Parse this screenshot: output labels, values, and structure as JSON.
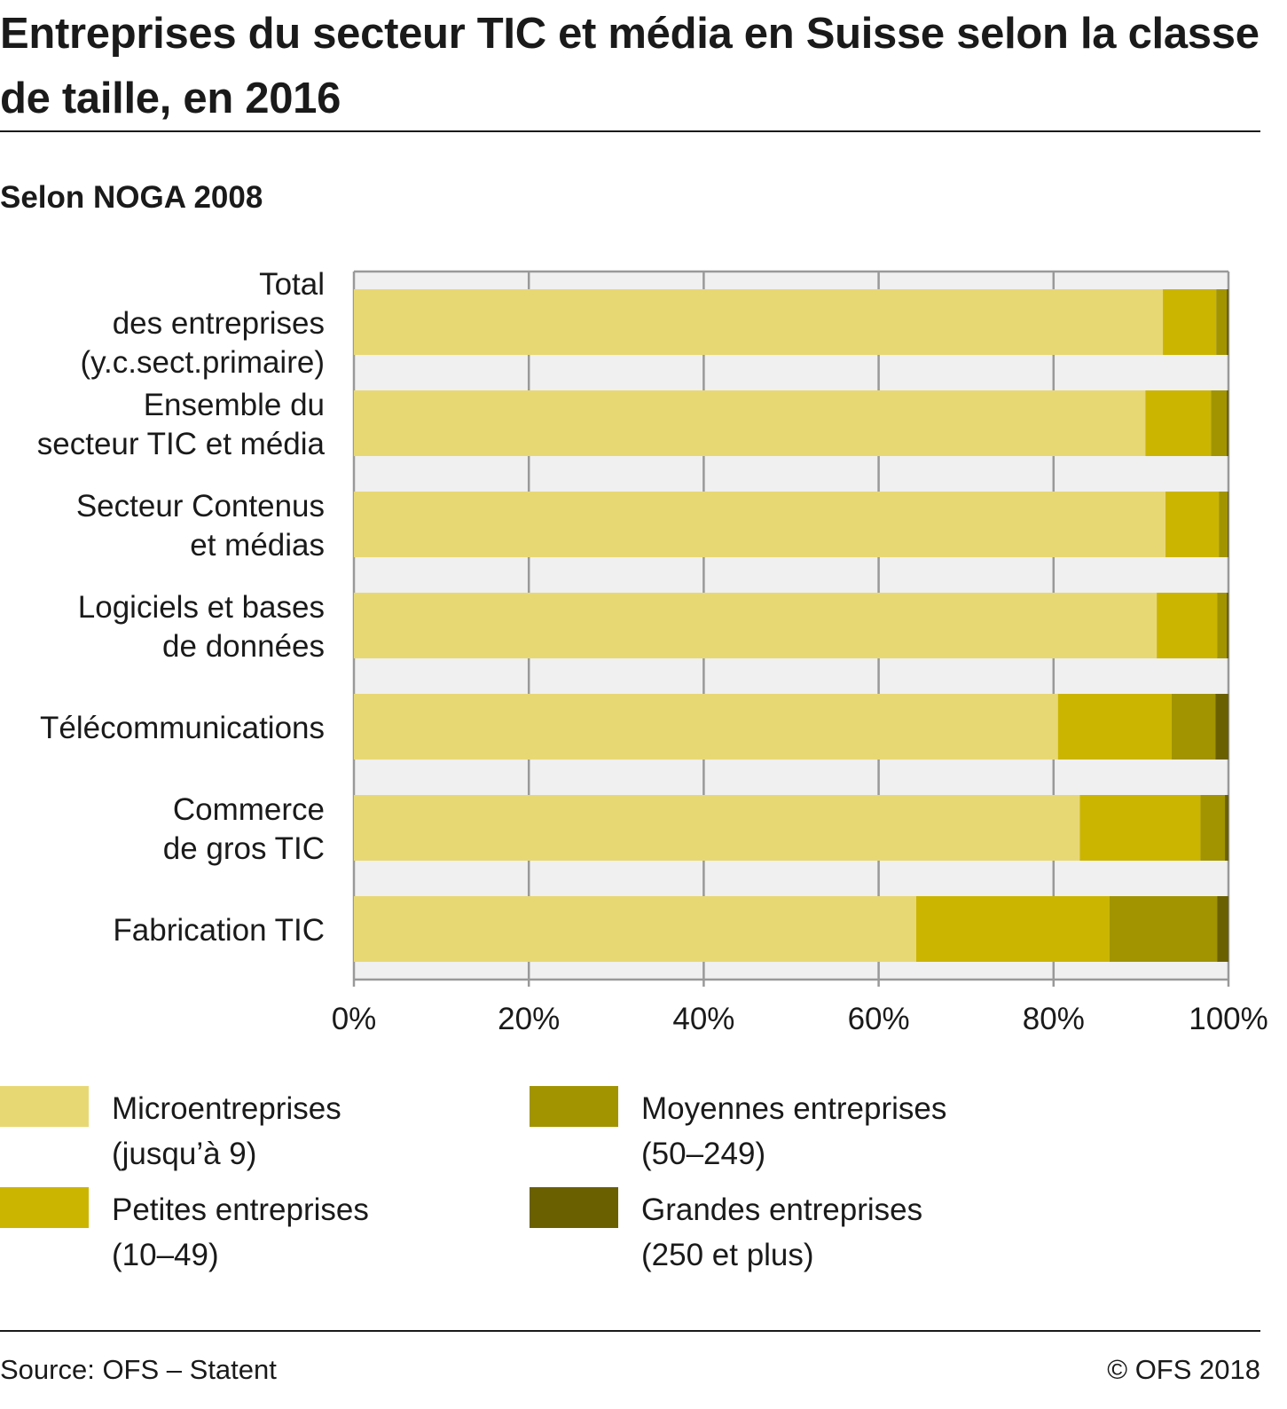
{
  "title": "Entreprises du secteur TIC et média en Suisse selon la classe de taille, en 2016",
  "subtitle": "Selon NOGA 2008",
  "source": "Source: OFS – Statent",
  "copyright": "© OFS 2018",
  "colors": {
    "micro": "#e8d874",
    "petites": "#cbb500",
    "moyennes": "#a19400",
    "grandes": "#6a6000",
    "band": "#f0f0f0",
    "grid": "#999999"
  },
  "chart_data": {
    "type": "bar",
    "orientation": "horizontal",
    "stacked": true,
    "categories": [
      [
        "Total",
        "des entreprises",
        "(y.c.sect.primaire)"
      ],
      [
        "Ensemble du",
        "secteur TIC et média"
      ],
      [
        "Secteur Contenus",
        "et médias"
      ],
      [
        "Logiciels et bases",
        "de données"
      ],
      [
        "Télécommunications"
      ],
      [
        "Commerce",
        "de gros TIC"
      ],
      [
        "Fabrication TIC"
      ]
    ],
    "series": [
      {
        "name": "Microentreprises (jusqu'à 9)",
        "legend_lines": [
          "Microentreprises",
          "(jusqu’à 9)"
        ],
        "color_key": "micro",
        "values": [
          92.5,
          90.5,
          92.8,
          91.8,
          80.5,
          83.0,
          64.3
        ]
      },
      {
        "name": "Petites entreprises (10–49)",
        "legend_lines": [
          "Petites entreprises",
          "(10–49)"
        ],
        "color_key": "petites",
        "values": [
          6.1,
          7.5,
          6.1,
          6.9,
          13.0,
          13.8,
          22.1
        ]
      },
      {
        "name": "Moyennes entreprises (50–249)",
        "legend_lines": [
          "Moyennes entreprises",
          "(50–249)"
        ],
        "color_key": "moyennes",
        "values": [
          1.2,
          1.8,
          1.0,
          1.1,
          5.0,
          2.8,
          12.3
        ]
      },
      {
        "name": "Grandes entreprises (250 et plus)",
        "legend_lines": [
          "Grandes entreprises",
          "(250 et plus)"
        ],
        "color_key": "grandes",
        "values": [
          0.2,
          0.2,
          0.1,
          0.2,
          1.5,
          0.4,
          1.3
        ]
      }
    ],
    "xlim": [
      0,
      100
    ],
    "xticks": [
      0,
      20,
      40,
      60,
      80,
      100
    ],
    "xtick_labels": [
      "0%",
      "20%",
      "40%",
      "60%",
      "80%",
      "100%"
    ],
    "grid": true,
    "legend_position": "bottom"
  }
}
